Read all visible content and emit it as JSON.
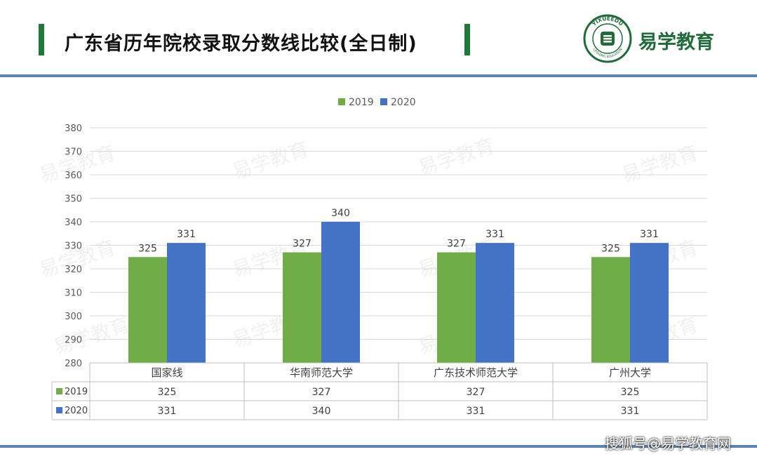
{
  "header": {
    "title": "广东省历年院校录取分数线比较(全日制)",
    "brand": "易学教育",
    "logo_ring_text_top": "YIXUEEDU",
    "logo_ring_text_bottom": "LIFELONG EDUCATION"
  },
  "footer": {
    "credit": "搜狐号@易学教育网"
  },
  "watermark": "易学教育",
  "colors": {
    "green": "#70ad47",
    "blue": "#4472c4",
    "accent": "#1f7a3a",
    "rule": "#5b84b8"
  },
  "chart_data": {
    "type": "bar",
    "categories": [
      "国家线",
      "华南师范大学",
      "广东技术师范大学",
      "广州大学"
    ],
    "series": [
      {
        "name": "2019",
        "values": [
          325,
          327,
          327,
          325
        ],
        "color": "#70ad47"
      },
      {
        "name": "2020",
        "values": [
          331,
          340,
          331,
          331
        ],
        "color": "#4472c4"
      }
    ],
    "ylim": [
      280,
      380
    ],
    "yticks": [
      280,
      290,
      300,
      310,
      320,
      330,
      340,
      350,
      360,
      370,
      380
    ],
    "legend": "top-center",
    "grid": true,
    "data_table": true
  }
}
